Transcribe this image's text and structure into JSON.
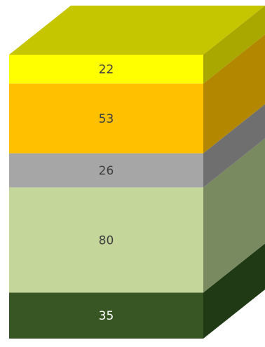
{
  "chart_data": {
    "type": "bar",
    "subtype": "3d-stacked-single-column",
    "title": "",
    "xlabel": "",
    "ylabel": "",
    "grid": false,
    "legend": "none",
    "segments_bottom_to_top": [
      {
        "value": 35,
        "label": "35",
        "front": "#375623",
        "side": "#203a15",
        "text_color": "#ffffff"
      },
      {
        "value": 80,
        "label": "80",
        "front": "#c5d69b",
        "side": "#7a8a60",
        "text_color": "#404040"
      },
      {
        "value": 26,
        "label": "26",
        "front": "#a6a6a6",
        "side": "#6f6f6f",
        "text_color": "#404040"
      },
      {
        "value": 53,
        "label": "53",
        "front": "#ffc000",
        "side": "#b38700",
        "text_color": "#404040"
      },
      {
        "value": 22,
        "label": "22",
        "front": "#ffff00",
        "side": "#a8a800",
        "text_color": "#404040"
      }
    ],
    "top_face_color": "#c5c500"
  }
}
